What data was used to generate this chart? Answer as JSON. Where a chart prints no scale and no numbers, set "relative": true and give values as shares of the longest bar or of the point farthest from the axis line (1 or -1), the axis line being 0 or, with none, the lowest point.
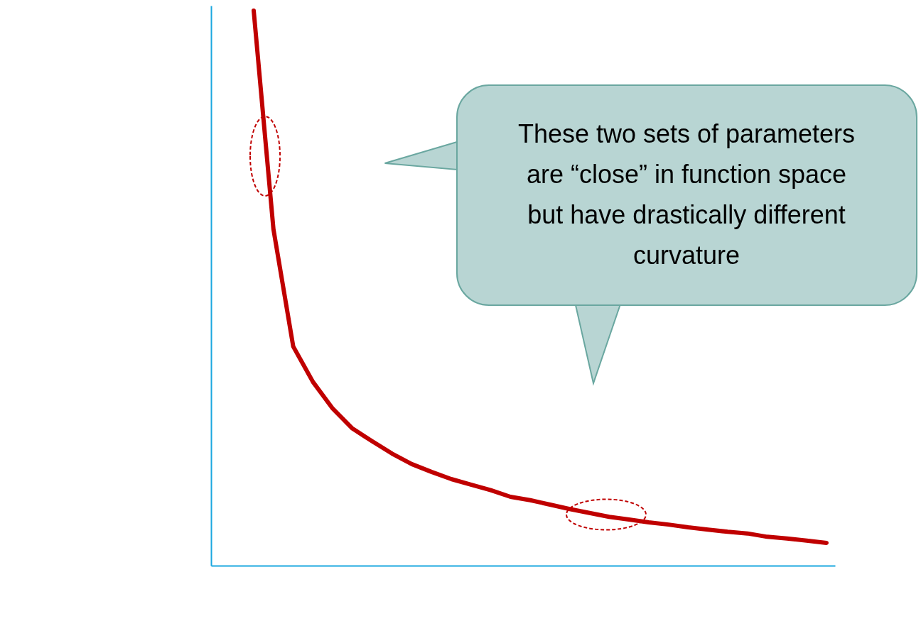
{
  "chart_data": {
    "type": "line",
    "relative": true,
    "tick_labels": false,
    "grid": false,
    "marker": "none",
    "line_style": "solid",
    "categories": [
      null,
      null,
      null,
      null,
      null,
      null,
      null,
      null,
      null,
      null,
      null,
      null,
      null,
      null,
      null,
      null,
      null,
      null,
      null,
      null,
      null,
      null,
      null,
      null,
      null,
      null,
      null,
      null,
      null,
      null
    ],
    "series": [
      {
        "color": "#c00000",
        "values": [
          1,
          0.606,
          0.395,
          0.331,
          0.283,
          0.247,
          0.224,
          0.202,
          0.183,
          0.169,
          0.156,
          0.146,
          0.136,
          0.124,
          0.118,
          0.11,
          0.102,
          0.095,
          0.088,
          0.083,
          0.078,
          0.074,
          0.069,
          0.065,
          0.061,
          0.058,
          0.052,
          0.049,
          0.045,
          0.041
        ]
      }
    ],
    "annotations": [
      "These two sets of parameters are “close” in function space but have drastically different curvature"
    ]
  }
}
